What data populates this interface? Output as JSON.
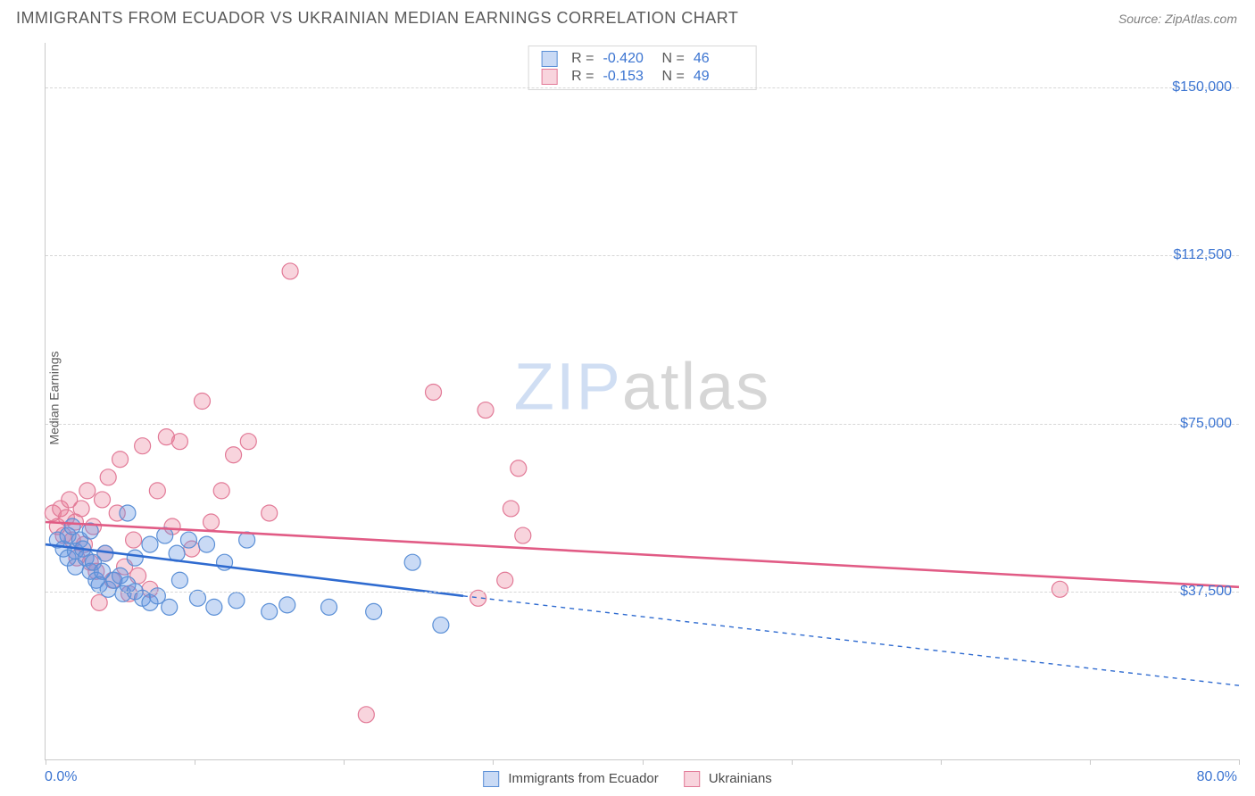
{
  "header": {
    "title": "IMMIGRANTS FROM ECUADOR VS UKRAINIAN MEDIAN EARNINGS CORRELATION CHART",
    "source": "Source: ZipAtlas.com"
  },
  "ylabel": "Median Earnings",
  "watermark": {
    "zip": "ZIP",
    "atlas": "atlas"
  },
  "chart": {
    "type": "scatter",
    "background_color": "#ffffff",
    "grid_color": "#d7d7d7",
    "axis_color": "#c9c9c9",
    "tick_label_color": "#3b74d1",
    "xlim": [
      0,
      80
    ],
    "ylim": [
      0,
      160000
    ],
    "xticks_pct": [
      0,
      10,
      20,
      30,
      40,
      50,
      60,
      70,
      80
    ],
    "yticks": [
      {
        "v": 37500,
        "label": "$37,500"
      },
      {
        "v": 75000,
        "label": "$75,000"
      },
      {
        "v": 112500,
        "label": "$112,500"
      },
      {
        "v": 150000,
        "label": "$150,000"
      }
    ],
    "xaxis_label_left": "0.0%",
    "xaxis_label_right": "80.0%",
    "marker_radius": 9,
    "marker_stroke_width": 1.2,
    "trend_line_width": 2.6
  },
  "series": {
    "ecuador": {
      "label": "Immigrants from Ecuador",
      "fill": "rgba(99,150,226,0.35)",
      "stroke": "#5a8fd6",
      "line_color": "#2f6bd0",
      "R": "-0.420",
      "N": "46",
      "trend": {
        "x1": 0,
        "y1": 48000,
        "x2": 28,
        "y2": 36500,
        "ext_x2": 80,
        "ext_y2": 16500,
        "dash": "5,5"
      },
      "points": [
        [
          0.8,
          49000
        ],
        [
          1.2,
          47000
        ],
        [
          1.5,
          50000
        ],
        [
          1.5,
          45000
        ],
        [
          1.8,
          52000
        ],
        [
          2.0,
          46500
        ],
        [
          2.0,
          43000
        ],
        [
          2.3,
          49000
        ],
        [
          2.5,
          47000
        ],
        [
          2.7,
          45000
        ],
        [
          3.0,
          51000
        ],
        [
          3.0,
          42000
        ],
        [
          3.2,
          44000
        ],
        [
          3.4,
          40000
        ],
        [
          3.6,
          39000
        ],
        [
          3.8,
          42000
        ],
        [
          4.0,
          46000
        ],
        [
          4.2,
          38000
        ],
        [
          4.6,
          40000
        ],
        [
          5.0,
          41000
        ],
        [
          5.2,
          37000
        ],
        [
          5.5,
          39000
        ],
        [
          5.5,
          55000
        ],
        [
          6.0,
          37500
        ],
        [
          6.0,
          45000
        ],
        [
          6.5,
          36000
        ],
        [
          7.0,
          48000
        ],
        [
          7.0,
          35000
        ],
        [
          7.5,
          36500
        ],
        [
          8.0,
          50000
        ],
        [
          8.3,
          34000
        ],
        [
          8.8,
          46000
        ],
        [
          9.0,
          40000
        ],
        [
          9.6,
          49000
        ],
        [
          10.2,
          36000
        ],
        [
          10.8,
          48000
        ],
        [
          11.3,
          34000
        ],
        [
          12.0,
          44000
        ],
        [
          12.8,
          35500
        ],
        [
          13.5,
          49000
        ],
        [
          15.0,
          33000
        ],
        [
          16.2,
          34500
        ],
        [
          19.0,
          34000
        ],
        [
          22.0,
          33000
        ],
        [
          24.6,
          44000
        ],
        [
          26.5,
          30000
        ]
      ]
    },
    "ukrainians": {
      "label": "Ukrainians",
      "fill": "rgba(234,120,150,0.32)",
      "stroke": "#e27a97",
      "line_color": "#e15b85",
      "R": "-0.153",
      "N": "49",
      "trend": {
        "x1": 0,
        "y1": 53000,
        "x2": 80,
        "y2": 38500
      },
      "points": [
        [
          0.5,
          55000
        ],
        [
          0.8,
          52000
        ],
        [
          1.0,
          56000
        ],
        [
          1.2,
          50000
        ],
        [
          1.4,
          54000
        ],
        [
          1.6,
          58000
        ],
        [
          1.8,
          49000
        ],
        [
          2.0,
          53000
        ],
        [
          2.1,
          45000
        ],
        [
          2.4,
          56000
        ],
        [
          2.6,
          48000
        ],
        [
          2.8,
          60000
        ],
        [
          3.0,
          44000
        ],
        [
          3.2,
          52000
        ],
        [
          3.4,
          42000
        ],
        [
          3.6,
          35000
        ],
        [
          3.8,
          58000
        ],
        [
          4.0,
          46000
        ],
        [
          4.2,
          63000
        ],
        [
          4.5,
          40000
        ],
        [
          4.8,
          55000
        ],
        [
          5.0,
          67000
        ],
        [
          5.3,
          43000
        ],
        [
          5.6,
          37000
        ],
        [
          5.9,
          49000
        ],
        [
          6.2,
          41000
        ],
        [
          6.5,
          70000
        ],
        [
          7.0,
          38000
        ],
        [
          7.5,
          60000
        ],
        [
          8.1,
          72000
        ],
        [
          8.5,
          52000
        ],
        [
          9.0,
          71000
        ],
        [
          9.8,
          47000
        ],
        [
          10.5,
          80000
        ],
        [
          11.1,
          53000
        ],
        [
          11.8,
          60000
        ],
        [
          12.6,
          68000
        ],
        [
          13.6,
          71000
        ],
        [
          15.0,
          55000
        ],
        [
          16.4,
          109000
        ],
        [
          21.5,
          10000
        ],
        [
          26.0,
          82000
        ],
        [
          29.0,
          36000
        ],
        [
          29.5,
          78000
        ],
        [
          30.8,
          40000
        ],
        [
          31.2,
          56000
        ],
        [
          31.7,
          65000
        ],
        [
          32.0,
          50000
        ],
        [
          68.0,
          38000
        ]
      ]
    }
  },
  "stats_legend": {
    "R_label": "R =",
    "N_label": "N ="
  },
  "bottom_legend": {
    "items": [
      "ecuador",
      "ukrainians"
    ]
  }
}
